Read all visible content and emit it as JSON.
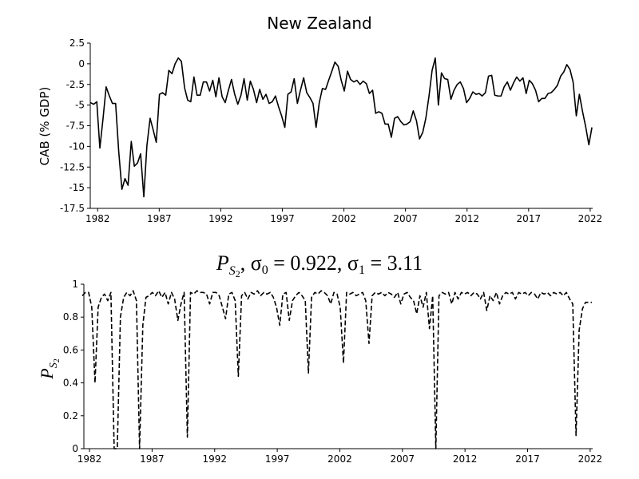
{
  "chart_data": [
    {
      "type": "line",
      "title": "New Zealand",
      "ylabel": "CAB (% GDP)",
      "color": "#000000",
      "linestyle": "solid",
      "x": [
        1981.42,
        1981.67,
        1981.93,
        1982.18,
        1982.44,
        1982.69,
        1982.95,
        1983.2,
        1983.46,
        1983.71,
        1983.97,
        1984.22,
        1984.47,
        1984.73,
        1984.98,
        1985.24,
        1985.49,
        1985.75,
        1986.0,
        1986.26,
        1986.51,
        1986.76,
        1987.02,
        1987.27,
        1987.53,
        1987.78,
        1988.04,
        1988.29,
        1988.55,
        1988.8,
        1989.06,
        1989.31,
        1989.56,
        1989.82,
        1990.07,
        1990.33,
        1990.58,
        1990.84,
        1991.09,
        1991.35,
        1991.6,
        1991.85,
        1992.11,
        1992.36,
        1992.62,
        1992.87,
        1993.13,
        1993.38,
        1993.64,
        1993.89,
        1994.15,
        1994.4,
        1994.65,
        1994.91,
        1995.16,
        1995.42,
        1995.67,
        1995.93,
        1996.18,
        1996.44,
        1996.69,
        1996.94,
        1997.2,
        1997.45,
        1997.71,
        1997.96,
        1998.22,
        1998.47,
        1998.73,
        1998.98,
        1999.24,
        1999.49,
        1999.74,
        2000.0,
        2000.25,
        2000.51,
        2000.76,
        2001.02,
        2001.27,
        2001.53,
        2001.78,
        2002.03,
        2002.29,
        2002.54,
        2002.8,
        2003.05,
        2003.31,
        2003.56,
        2003.82,
        2004.07,
        2004.33,
        2004.58,
        2004.83,
        2005.09,
        2005.34,
        2005.6,
        2005.85,
        2006.11,
        2006.36,
        2006.62,
        2006.87,
        2007.12,
        2007.38,
        2007.63,
        2007.89,
        2008.14,
        2008.4,
        2008.65,
        2008.91,
        2009.16,
        2009.42,
        2009.67,
        2009.92,
        2010.18,
        2010.43,
        2010.69,
        2010.94,
        2011.2,
        2011.45,
        2011.71,
        2011.96,
        2012.21,
        2012.47,
        2012.72,
        2012.98,
        2013.23,
        2013.49,
        2013.74,
        2014.0,
        2014.25,
        2014.51,
        2014.76,
        2015.01,
        2015.27,
        2015.52,
        2015.78,
        2016.03,
        2016.29,
        2016.54,
        2016.8,
        2017.05,
        2017.3,
        2017.56,
        2017.81,
        2018.07,
        2018.32,
        2018.58,
        2018.83,
        2019.09,
        2019.34,
        2019.6,
        2019.85,
        2020.1,
        2020.36,
        2020.61,
        2020.87,
        2021.12,
        2021.38,
        2021.63,
        2021.89,
        2022.14
      ],
      "values": [
        -4.7,
        -4.9,
        -4.6,
        -10.2,
        -6.6,
        -2.8,
        -3.9,
        -4.8,
        -4.8,
        -10.6,
        -15.2,
        -13.9,
        -14.7,
        -9.4,
        -12.4,
        -12,
        -10.9,
        -16.1,
        -9.9,
        -6.6,
        -8,
        -9.5,
        -3.7,
        -3.5,
        -3.8,
        -0.8,
        -1.2,
        0,
        0.7,
        0.3,
        -2.9,
        -4.4,
        -4.6,
        -1.6,
        -3.8,
        -3.8,
        -2.2,
        -2.2,
        -3.3,
        -2,
        -4,
        -1.7,
        -4,
        -4.7,
        -3.2,
        -1.9,
        -3.7,
        -4.9,
        -3.8,
        -1.8,
        -4.4,
        -2.1,
        -3.1,
        -4.7,
        -3.1,
        -4.3,
        -3.7,
        -4.8,
        -4.6,
        -3.9,
        -5.2,
        -6.3,
        -7.7,
        -3.7,
        -3.4,
        -1.8,
        -4.8,
        -3.2,
        -1.7,
        -3.5,
        -4.1,
        -4.8,
        -7.7,
        -4.7,
        -3,
        -3.1,
        -2,
        -0.9,
        0.2,
        -0.3,
        -2,
        -3.3,
        -0.9,
        -1.9,
        -2.2,
        -2,
        -2.5,
        -2.1,
        -2.4,
        -3.6,
        -3.2,
        -6,
        -5.8,
        -6,
        -7.3,
        -7.3,
        -8.9,
        -6.6,
        -6.4,
        -7,
        -7.4,
        -7.3,
        -7,
        -5.7,
        -6.9,
        -9.1,
        -8.3,
        -6.6,
        -3.9,
        -0.8,
        0.7,
        -5,
        -1.1,
        -1.8,
        -1.9,
        -4.3,
        -3.2,
        -2.5,
        -2.2,
        -3,
        -4.7,
        -4.2,
        -3.4,
        -3.7,
        -3.6,
        -3.9,
        -3.5,
        -1.5,
        -1.4,
        -3.8,
        -3.9,
        -3.9,
        -2.8,
        -2.2,
        -3.2,
        -2.3,
        -1.6,
        -2.1,
        -1.7,
        -3.6,
        -2,
        -2.4,
        -3.2,
        -4.6,
        -4.2,
        -4.2,
        -3.6,
        -3.5,
        -3.1,
        -2.6,
        -1.5,
        -1,
        -0.1,
        -0.7,
        -2.2,
        -6.3,
        -3.7,
        -5.8,
        -7.6,
        -9.8,
        -7.7
      ],
      "xlim": [
        1981.4,
        2022.2
      ],
      "xticks": [
        1982,
        1987,
        1992,
        1997,
        2002,
        2007,
        2012,
        2017,
        2022
      ],
      "ylim": [
        -17.5,
        2.5
      ],
      "yticks": [
        2.5,
        0,
        -2.5,
        -5,
        -7.5,
        -10,
        -12.5,
        -15,
        -17.5
      ]
    },
    {
      "type": "line",
      "title": [
        "P",
        "S",
        "2",
        ", σ",
        "0",
        " = 0.922, σ",
        "1",
        " = 3.11"
      ],
      "ylabel": [
        "P",
        "S",
        "2"
      ],
      "color": "#000000",
      "linestyle": "dashed",
      "x": [
        1981.42,
        1981.67,
        1981.93,
        1982.18,
        1982.44,
        1982.69,
        1982.95,
        1983.2,
        1983.46,
        1983.71,
        1983.97,
        1984.22,
        1984.47,
        1984.73,
        1984.98,
        1985.24,
        1985.49,
        1985.75,
        1986.0,
        1986.26,
        1986.51,
        1986.76,
        1987.02,
        1987.27,
        1987.53,
        1987.78,
        1988.04,
        1988.29,
        1988.55,
        1988.8,
        1989.06,
        1989.31,
        1989.56,
        1989.82,
        1990.07,
        1990.33,
        1990.58,
        1990.84,
        1991.09,
        1991.35,
        1991.6,
        1991.85,
        1992.11,
        1992.36,
        1992.62,
        1992.87,
        1993.13,
        1993.38,
        1993.64,
        1993.89,
        1994.15,
        1994.4,
        1994.65,
        1994.91,
        1995.16,
        1995.42,
        1995.67,
        1995.93,
        1996.18,
        1996.44,
        1996.69,
        1996.94,
        1997.2,
        1997.45,
        1997.71,
        1997.96,
        1998.22,
        1998.47,
        1998.73,
        1998.98,
        1999.24,
        1999.49,
        1999.74,
        2000.0,
        2000.25,
        2000.51,
        2000.76,
        2001.02,
        2001.27,
        2001.53,
        2001.78,
        2002.03,
        2002.29,
        2002.54,
        2002.8,
        2003.05,
        2003.31,
        2003.56,
        2003.82,
        2004.07,
        2004.33,
        2004.58,
        2004.83,
        2005.09,
        2005.34,
        2005.6,
        2005.85,
        2006.11,
        2006.36,
        2006.62,
        2006.87,
        2007.12,
        2007.38,
        2007.63,
        2007.89,
        2008.14,
        2008.4,
        2008.65,
        2008.91,
        2009.16,
        2009.42,
        2009.67,
        2009.92,
        2010.18,
        2010.43,
        2010.69,
        2010.94,
        2011.2,
        2011.45,
        2011.71,
        2011.96,
        2012.21,
        2012.47,
        2012.72,
        2012.98,
        2013.23,
        2013.49,
        2013.74,
        2014.0,
        2014.25,
        2014.51,
        2014.76,
        2015.01,
        2015.27,
        2015.52,
        2015.78,
        2016.03,
        2016.29,
        2016.54,
        2016.8,
        2017.05,
        2017.3,
        2017.56,
        2017.81,
        2018.07,
        2018.32,
        2018.58,
        2018.83,
        2019.09,
        2019.34,
        2019.6,
        2019.85,
        2020.1,
        2020.36,
        2020.61,
        2020.87,
        2021.12,
        2021.38,
        2021.63,
        2021.89,
        2022.14
      ],
      "values": [
        0.93,
        0.95,
        0.95,
        0.86,
        0.4,
        0.86,
        0.92,
        0.94,
        0.9,
        0.95,
        0,
        0,
        0.8,
        0.92,
        0.95,
        0.93,
        0.96,
        0.9,
        0,
        0.75,
        0.92,
        0.93,
        0.95,
        0.93,
        0.96,
        0.92,
        0.95,
        0.88,
        0.95,
        0.91,
        0.78,
        0.88,
        0.95,
        0.07,
        0.95,
        0.94,
        0.96,
        0.95,
        0.95,
        0.94,
        0.88,
        0.95,
        0.95,
        0.93,
        0.86,
        0.79,
        0.94,
        0.95,
        0.9,
        0.44,
        0.93,
        0.95,
        0.91,
        0.95,
        0.94,
        0.96,
        0.93,
        0.95,
        0.94,
        0.95,
        0.92,
        0.86,
        0.75,
        0.94,
        0.95,
        0.78,
        0.9,
        0.93,
        0.95,
        0.93,
        0.9,
        0.46,
        0.92,
        0.95,
        0.94,
        0.96,
        0.95,
        0.93,
        0.88,
        0.95,
        0.94,
        0.86,
        0.52,
        0.95,
        0.94,
        0.95,
        0.93,
        0.94,
        0.95,
        0.9,
        0.64,
        0.93,
        0.95,
        0.94,
        0.95,
        0.93,
        0.95,
        0.94,
        0.92,
        0.95,
        0.88,
        0.94,
        0.95,
        0.92,
        0.9,
        0.82,
        0.93,
        0.86,
        0.95,
        0.73,
        0.93,
        0,
        0.93,
        0.95,
        0.94,
        0.95,
        0.88,
        0.95,
        0.91,
        0.95,
        0.94,
        0.95,
        0.93,
        0.95,
        0.94,
        0.91,
        0.95,
        0.84,
        0.93,
        0.9,
        0.95,
        0.88,
        0.93,
        0.95,
        0.94,
        0.95,
        0.91,
        0.95,
        0.94,
        0.95,
        0.93,
        0.95,
        0.94,
        0.91,
        0.95,
        0.94,
        0.95,
        0.93,
        0.95,
        0.94,
        0.95,
        0.93,
        0.95,
        0.91,
        0.88,
        0.08,
        0.72,
        0.85,
        0.89,
        0.89,
        0.89
      ],
      "xlim": [
        1981.55,
        2022.2
      ],
      "xticks": [
        1982,
        1987,
        1992,
        1997,
        2002,
        2007,
        2012,
        2017,
        2022
      ],
      "ylim": [
        0,
        1
      ],
      "yticks": [
        0,
        0.2,
        0.4,
        0.6,
        0.8,
        1
      ]
    }
  ]
}
